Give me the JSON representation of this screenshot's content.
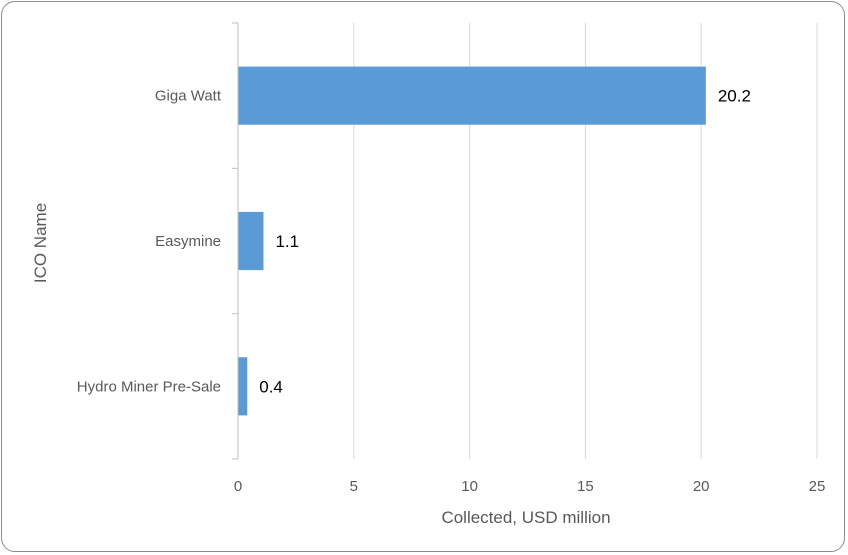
{
  "chart_data": {
    "type": "bar",
    "orientation": "horizontal",
    "categories": [
      "Giga Watt",
      "Easymine",
      "Hydro Miner Pre-Sale"
    ],
    "values": [
      20.2,
      1.1,
      0.4
    ],
    "data_labels": [
      "20.2",
      "1.1",
      "0.4"
    ],
    "xlabel": "Collected, USD million",
    "ylabel": "ICO Name",
    "xlim": [
      0,
      25
    ],
    "xticks": [
      0,
      5,
      10,
      15,
      20,
      25
    ],
    "xtick_labels": [
      "0",
      "5",
      "10",
      "15",
      "20",
      "25"
    ],
    "grid": true,
    "legend": "none",
    "bar_color": "#5B9BD5"
  }
}
